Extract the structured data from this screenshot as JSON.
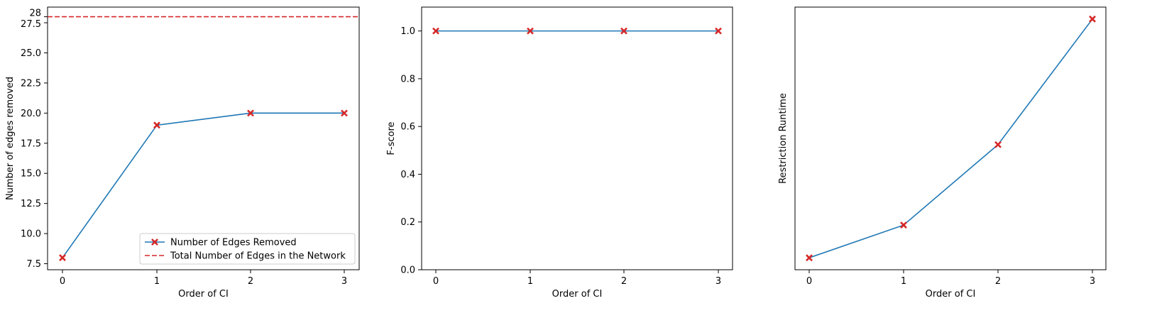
{
  "colors": {
    "series": "#1f77b4",
    "marker": "#d62728",
    "reference": "#d62728",
    "axis": "#000000",
    "background": "#ffffff"
  },
  "chart_data": [
    {
      "type": "line",
      "x": [
        0,
        1,
        2,
        3
      ],
      "xticks": [
        "0",
        "1",
        "2",
        "3"
      ],
      "xlabel": "Order of CI",
      "ylabel": "Number of edges removed",
      "ylim": [
        7.0,
        28.8
      ],
      "yticks": [
        "7.5",
        "10.0",
        "12.5",
        "15.0",
        "17.5",
        "20.0",
        "22.5",
        "25.0",
        "27.5",
        "28"
      ],
      "series": [
        {
          "name": "Number of Edges Removed",
          "values": [
            8,
            19,
            20,
            20
          ],
          "marker": "X"
        }
      ],
      "reference_line": {
        "name": "Total Number of Edges in the Network",
        "value": 28,
        "style": "dashed"
      },
      "legend": {
        "position": "bottom-right",
        "entries": [
          "Number of Edges Removed",
          "Total Number of Edges in the Network"
        ]
      }
    },
    {
      "type": "line",
      "x": [
        0,
        1,
        2,
        3
      ],
      "xticks": [
        "0",
        "1",
        "2",
        "3"
      ],
      "xlabel": "Order of CI",
      "ylabel": "F-score",
      "ylim": [
        0.0,
        1.1
      ],
      "yticks": [
        "0.0",
        "0.2",
        "0.4",
        "0.6",
        "0.8",
        "1.0"
      ],
      "series": [
        {
          "values": [
            1.0,
            1.0,
            1.0,
            1.0
          ],
          "marker": "X"
        }
      ]
    },
    {
      "type": "line",
      "x": [
        0,
        1,
        2,
        3
      ],
      "xticks": [
        "0",
        "1",
        "2",
        "3"
      ],
      "xlabel": "Order of CI",
      "ylabel": "Restriction Runtime",
      "ylim": [
        -0.05,
        1.05
      ],
      "yticks": [],
      "y_values_normalized": true,
      "series": [
        {
          "values": [
            0.0,
            0.137,
            0.474,
            1.0
          ],
          "marker": "X"
        }
      ]
    }
  ]
}
